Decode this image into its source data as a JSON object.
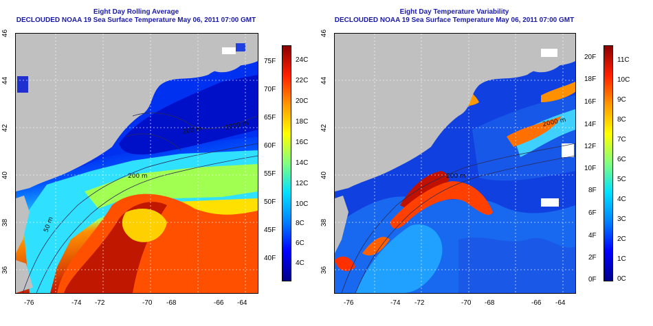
{
  "panels": [
    {
      "title_line1": "Eight Day Rolling Average",
      "title_line2": "DECLOUDED NOAA 19 Sea Surface Temperature May 06, 2011 07:00 GMT",
      "contour_labels": [
        "2000 m",
        "200 m",
        "200 m",
        "50 m"
      ],
      "colorbar": {
        "fahrenheit": [
          "75F",
          "70F",
          "65F",
          "60F",
          "55F",
          "50F",
          "45F",
          "40F"
        ],
        "celsius": [
          "24C",
          "22C",
          "20C",
          "18C",
          "16C",
          "14C",
          "12C",
          "10C",
          "8C",
          "6C",
          "4C"
        ]
      }
    },
    {
      "title_line1": "Eight Day Temperature Variability",
      "title_line2": "DECLOUDED NOAA 19 Sea Surface Temperature May 06, 2011 07:00 GMT",
      "contour_labels": [
        "2000 m",
        "200 m"
      ],
      "colorbar": {
        "fahrenheit": [
          "20F",
          "18F",
          "16F",
          "14F",
          "12F",
          "10F",
          "8F",
          "6F",
          "4F",
          "2F",
          "0F"
        ],
        "celsius": [
          "11C",
          "10C",
          "9C",
          "8C",
          "7C",
          "6C",
          "5C",
          "4C",
          "3C",
          "2C",
          "1C",
          "0C"
        ]
      }
    }
  ],
  "axes": {
    "lon_ticks": [
      "-76",
      "-74",
      "-72",
      "-70",
      "-68",
      "-66",
      "-64"
    ],
    "lat_ticks": [
      "46",
      "44",
      "42",
      "40",
      "38",
      "36"
    ]
  },
  "colors": {
    "land": "#c0c0c0",
    "title": "#1a1aa8",
    "colormap": [
      "#00008a",
      "#0000ff",
      "#0080ff",
      "#00e0ff",
      "#80ff80",
      "#ffff00",
      "#ff9900",
      "#ff2000",
      "#8a0000"
    ]
  }
}
